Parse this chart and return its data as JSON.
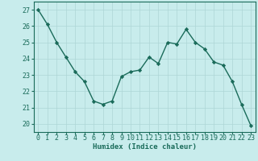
{
  "x": [
    0,
    1,
    2,
    3,
    4,
    5,
    6,
    7,
    8,
    9,
    10,
    11,
    12,
    13,
    14,
    15,
    16,
    17,
    18,
    19,
    20,
    21,
    22,
    23
  ],
  "y": [
    27.0,
    26.1,
    25.0,
    24.1,
    23.2,
    22.6,
    21.4,
    21.2,
    21.4,
    22.9,
    23.2,
    23.3,
    24.1,
    23.7,
    25.0,
    24.9,
    25.8,
    25.0,
    24.6,
    23.8,
    23.6,
    22.6,
    21.2,
    19.9
  ],
  "line_color": "#1a6b5a",
  "marker": "D",
  "marker_size": 2.2,
  "bg_color": "#c8ecec",
  "grid_color": "#aed6d6",
  "axis_color": "#1a6b5a",
  "xlabel": "Humidex (Indice chaleur)",
  "ylabel": "",
  "xlim": [
    -0.5,
    23.5
  ],
  "ylim": [
    19.5,
    27.5
  ],
  "xticks": [
    0,
    1,
    2,
    3,
    4,
    5,
    6,
    7,
    8,
    9,
    10,
    11,
    12,
    13,
    14,
    15,
    16,
    17,
    18,
    19,
    20,
    21,
    22,
    23
  ],
  "yticks": [
    20,
    21,
    22,
    23,
    24,
    25,
    26,
    27
  ],
  "xlabel_fontsize": 6.5,
  "tick_fontsize": 6.0,
  "line_width": 1.0
}
